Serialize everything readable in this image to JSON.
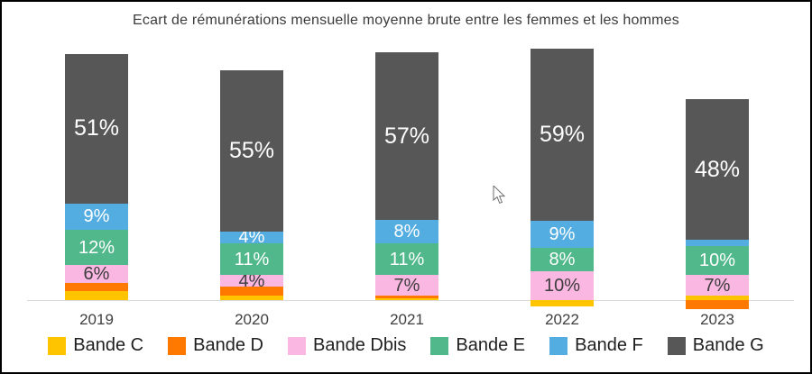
{
  "chart_data": {
    "type": "bar",
    "variant": "stacked-column",
    "title": "Ecart de rémunérations mensuelle moyenne brute entre les femmes et les hommes",
    "categories": [
      "2019",
      "2020",
      "2021",
      "2022",
      "2023"
    ],
    "value_suffix": "%",
    "series": [
      {
        "name": "Bande C",
        "color": "#FFC400",
        "label_text_color": "#3d3d3d",
        "values": [
          3,
          1.5,
          0.5,
          -2,
          1.5
        ],
        "labels": [
          "",
          "",
          "",
          "",
          ""
        ]
      },
      {
        "name": "Bande D",
        "color": "#FF7900",
        "label_text_color": "#3d3d3d",
        "values": [
          3,
          3,
          1,
          0,
          -3
        ],
        "labels": [
          "",
          "",
          "",
          "",
          ""
        ]
      },
      {
        "name": "Bande Dbis",
        "color": "#F9B7E1",
        "label_text_color": "#3d3d3d",
        "values": [
          6,
          4,
          7,
          10,
          7
        ],
        "labels": [
          "6%",
          "4%",
          "7%",
          "10%",
          "7%"
        ]
      },
      {
        "name": "Bande E",
        "color": "#50B88A",
        "label_text_color": "#ffffff",
        "values": [
          12,
          11,
          11,
          8,
          10
        ],
        "labels": [
          "12%",
          "11%",
          "11%",
          "8%",
          "10%"
        ]
      },
      {
        "name": "Bande F",
        "color": "#54ADE1",
        "label_text_color": "#ffffff",
        "values": [
          9,
          4,
          8,
          9,
          2
        ],
        "labels": [
          "9%",
          "4%",
          "8%",
          "9%",
          ""
        ]
      },
      {
        "name": "Bande G",
        "color": "#575757",
        "label_text_color": "#ffffff",
        "values": [
          51,
          55,
          57,
          59,
          48
        ],
        "labels": [
          "51%",
          "55%",
          "57%",
          "59%",
          "48%"
        ]
      }
    ],
    "axis": {
      "baseline_color": "#d9d9d9",
      "y_axis_visible": false,
      "grid": false
    },
    "legend_position": "bottom"
  }
}
